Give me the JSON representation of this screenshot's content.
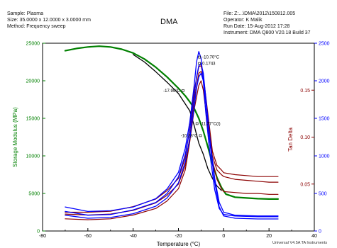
{
  "header": {
    "left": {
      "sample": "Sample: Plasma",
      "size": "Size:  35.0000 x 12.0000 x 3.0000 mm",
      "method": "Method: Frequency sweep"
    },
    "title": "DMA",
    "right": {
      "file": "File: Z:...\\DMA\\2012\\150812.005",
      "operator": "Operator: K Malik",
      "run_date": "Run Date: 15-Aug-2012 17:28",
      "instrument": "Instrument: DMA Q800 V20.18 Build 37"
    }
  },
  "footer": "Universal V4.5A TA Instruments",
  "colors": {
    "green": "#008000",
    "red": "#8b0000",
    "blue": "#0000ff",
    "black": "#000000"
  },
  "chart_data": {
    "type": "line",
    "xlabel": "Temperature (°C)",
    "xlim": [
      -80,
      40
    ],
    "x_ticks": [
      "-80",
      "-60",
      "-40",
      "-20",
      "0",
      "20",
      "40"
    ],
    "y_left": {
      "label": "Storage Modulus (MPa)",
      "ylim": [
        0,
        25000
      ],
      "ticks": [
        "0",
        "5000",
        "10000",
        "15000",
        "20000",
        "25000"
      ],
      "color": "#008000"
    },
    "y_right_inner": {
      "label": "Tan Delta",
      "ylim": [
        0,
        0.2
      ],
      "ticks": [
        "0.05",
        "0.10",
        "0.15"
      ],
      "color": "#8b0000"
    },
    "y_right_outer": {
      "ylim": [
        0,
        2500
      ],
      "ticks": [
        "0",
        "500",
        "1000",
        "1500",
        "2000",
        "2500"
      ],
      "color": "#0000ff"
    },
    "annotations": [
      {
        "text": "-10.70°C",
        "x": -10.7,
        "y": 23150
      },
      {
        "text": "0.1743",
        "x": -10.7,
        "y": 22300
      },
      {
        "text": "-17.99°C",
        "x": -18.0,
        "y": 18700
      },
      {
        "text": "-11.77°C(I)",
        "x": -11.8,
        "y": 14300
      },
      {
        "text": "-10.28°C",
        "x": -10.3,
        "y": 12700
      }
    ],
    "series": [
      {
        "color": "#008000",
        "axis": "left",
        "width": 2.2,
        "x": [
          -70,
          -65,
          -60,
          -55,
          -50,
          -45,
          -40,
          -35,
          -30,
          -25,
          -20,
          -17,
          -15,
          -13,
          -11,
          -9,
          -7,
          -5,
          -3,
          -1,
          1,
          5,
          10,
          15,
          20,
          24
        ],
        "y": [
          24000,
          24300,
          24500,
          24600,
          24500,
          24200,
          23700,
          22900,
          21800,
          20500,
          19000,
          18000,
          17200,
          16300,
          15000,
          13300,
          11200,
          9000,
          7100,
          5800,
          4900,
          4500,
          4400,
          4300,
          4250,
          4250
        ]
      },
      {
        "color": "#000000",
        "axis": "left",
        "width": 1.3,
        "x": [
          -40,
          -35,
          -30,
          -25,
          -20,
          -15,
          -13,
          -11,
          -9,
          -7,
          -5,
          -3,
          -1
        ],
        "y": [
          23500,
          22500,
          21200,
          19800,
          18300,
          16000,
          14000,
          11700,
          10200,
          8300,
          7000,
          6000,
          5400
        ]
      },
      {
        "color": "#8b0000",
        "axis": "right_inner",
        "width": 1.2,
        "x": [
          -70,
          -60,
          -50,
          -40,
          -30,
          -25,
          -20,
          -17,
          -15,
          -13,
          -11,
          -10,
          -9,
          -7,
          -5,
          -3,
          -1,
          0,
          5,
          10,
          15,
          20,
          24
        ],
        "y": [
          0.018,
          0.017,
          0.018,
          0.022,
          0.03,
          0.038,
          0.05,
          0.07,
          0.1,
          0.14,
          0.168,
          0.17,
          0.16,
          0.12,
          0.08,
          0.065,
          0.06,
          0.058,
          0.055,
          0.054,
          0.053,
          0.052,
          0.052
        ]
      },
      {
        "color": "#8b0000",
        "axis": "right_inner",
        "width": 1.2,
        "x": [
          -70,
          -60,
          -50,
          -40,
          -30,
          -25,
          -20,
          -17,
          -15,
          -13,
          -11,
          -10,
          -9,
          -7,
          -5,
          -3,
          -1,
          0,
          5,
          10,
          15,
          20,
          24
        ],
        "y": [
          0.02,
          0.02,
          0.021,
          0.026,
          0.034,
          0.043,
          0.056,
          0.078,
          0.11,
          0.15,
          0.175,
          0.176,
          0.165,
          0.125,
          0.085,
          0.07,
          0.065,
          0.062,
          0.06,
          0.059,
          0.058,
          0.058,
          0.058
        ]
      },
      {
        "color": "#8b0000",
        "axis": "right_inner",
        "width": 1.2,
        "x": [
          -70,
          -60,
          -50,
          -40,
          -30,
          -25,
          -20,
          -17,
          -15,
          -13,
          -11,
          -10,
          -9,
          -7,
          -5,
          -3,
          -1,
          0,
          5,
          10,
          15,
          20,
          24
        ],
        "y": [
          0.013,
          0.012,
          0.013,
          0.017,
          0.024,
          0.032,
          0.045,
          0.065,
          0.095,
          0.13,
          0.155,
          0.16,
          0.15,
          0.11,
          0.075,
          0.055,
          0.045,
          0.042,
          0.041,
          0.04,
          0.04,
          0.039,
          0.039
        ]
      },
      {
        "color": "#0000ff",
        "axis": "right_outer",
        "width": 1.3,
        "x": [
          -70,
          -60,
          -50,
          -40,
          -30,
          -25,
          -20,
          -17,
          -15,
          -13,
          -12,
          -11,
          -10,
          -9,
          -8,
          -6,
          -4,
          -2,
          0,
          5,
          10,
          15,
          20,
          24
        ],
        "y": [
          320,
          260,
          270,
          320,
          430,
          560,
          780,
          1100,
          1450,
          1950,
          2250,
          2390,
          2300,
          2000,
          1600,
          1000,
          550,
          300,
          220,
          200,
          195,
          190,
          190,
          190
        ]
      },
      {
        "color": "#0000ff",
        "axis": "right_outer",
        "width": 1.3,
        "x": [
          -70,
          -60,
          -50,
          -40,
          -30,
          -25,
          -20,
          -17,
          -15,
          -13,
          -12,
          -11,
          -10,
          -9,
          -8,
          -6,
          -4,
          -2,
          0,
          5,
          10,
          15,
          20,
          24
        ],
        "y": [
          260,
          210,
          220,
          280,
          380,
          500,
          720,
          1020,
          1350,
          1800,
          2050,
          2200,
          2230,
          2100,
          1800,
          1200,
          700,
          380,
          250,
          210,
          205,
          200,
          200,
          200
        ]
      },
      {
        "color": "#0000ff",
        "axis": "right_outer",
        "width": 1.3,
        "x": [
          -70,
          -60,
          -50,
          -40,
          -30,
          -25,
          -20,
          -17,
          -15,
          -13,
          -12,
          -11,
          -10,
          -9,
          -8,
          -6,
          -4,
          -2,
          0,
          5,
          10,
          15,
          20,
          24
        ],
        "y": [
          210,
          170,
          180,
          230,
          330,
          440,
          640,
          920,
          1230,
          1650,
          1900,
          2050,
          2100,
          2000,
          1750,
          1150,
          650,
          320,
          200,
          170,
          165,
          160,
          160,
          160
        ]
      }
    ]
  }
}
